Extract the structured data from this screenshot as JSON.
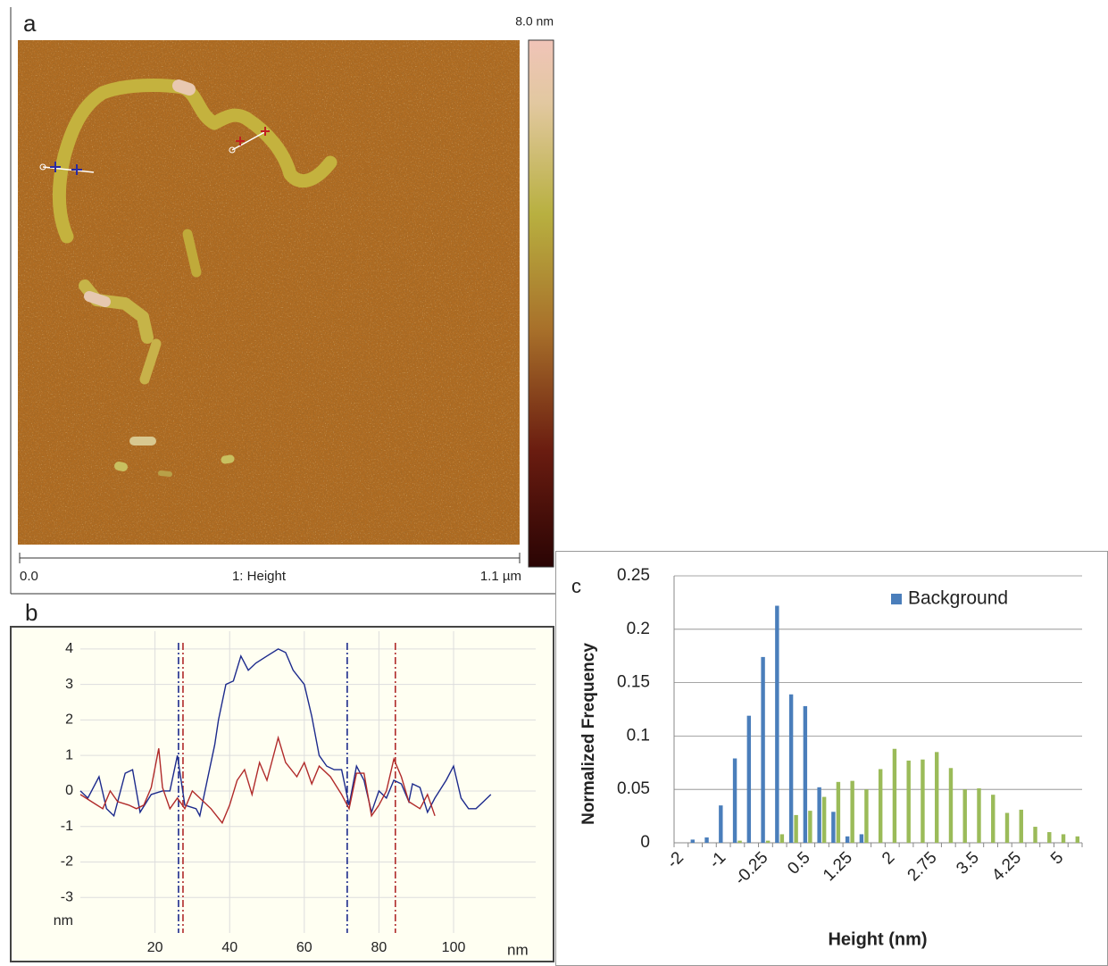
{
  "afm_image": {
    "label": "a",
    "colorbar_max": "8.0 nm",
    "x_start": "0.0",
    "channel": "1: Height",
    "x_end": "1.1 µm"
  },
  "chart_data": [
    {
      "type": "line",
      "label": "b",
      "x_label": "nm",
      "y_label": "nm",
      "xlim": [
        0,
        122
      ],
      "ylim": [
        -4,
        4.5
      ],
      "xticks": [
        20,
        40,
        60,
        80,
        100
      ],
      "yticks": [
        -3,
        -2,
        -1,
        0,
        1,
        2,
        3,
        4
      ],
      "grid": true,
      "series": [
        {
          "color": "#1c2a8c",
          "x": [
            0,
            2,
            5,
            7,
            9,
            12,
            14,
            16,
            19,
            22,
            24,
            26,
            28,
            31,
            32,
            34,
            36,
            37,
            39,
            41,
            43,
            45,
            47,
            50,
            53,
            55,
            57,
            60,
            62,
            64,
            66,
            68,
            70,
            72,
            74,
            76,
            78,
            80,
            82,
            84,
            86,
            88,
            89,
            91,
            93,
            95,
            98,
            100,
            102,
            104,
            106,
            108,
            110
          ],
          "values": [
            0.0,
            -0.2,
            0.4,
            -0.5,
            -0.7,
            0.5,
            0.6,
            -0.6,
            -0.1,
            0.0,
            0.0,
            1.0,
            -0.4,
            -0.5,
            -0.7,
            0.3,
            1.3,
            2.0,
            3.0,
            3.1,
            3.8,
            3.4,
            3.6,
            3.8,
            4.0,
            3.9,
            3.4,
            3.0,
            2.1,
            1.0,
            0.7,
            0.6,
            0.6,
            -0.4,
            0.7,
            0.3,
            -0.6,
            0.0,
            -0.2,
            0.3,
            0.2,
            -0.3,
            0.2,
            0.1,
            -0.6,
            -0.2,
            0.3,
            0.7,
            -0.2,
            -0.5,
            -0.5,
            -0.3,
            -0.1
          ]
        },
        {
          "color": "#b02a2a",
          "x": [
            0,
            3,
            6,
            8,
            10,
            13,
            15,
            17,
            19,
            21,
            22,
            24,
            26,
            28,
            30,
            33,
            35,
            38,
            40,
            42,
            44,
            46,
            48,
            50,
            53,
            55,
            58,
            60,
            62,
            64,
            67,
            70,
            72,
            74,
            76,
            78,
            80,
            82,
            84,
            86,
            88,
            91,
            93,
            95
          ],
          "values": [
            -0.1,
            -0.3,
            -0.5,
            0.0,
            -0.3,
            -0.4,
            -0.5,
            -0.4,
            0.1,
            1.2,
            0.1,
            -0.5,
            -0.2,
            -0.5,
            0.0,
            -0.3,
            -0.5,
            -0.9,
            -0.4,
            0.3,
            0.6,
            -0.1,
            0.8,
            0.3,
            1.5,
            0.8,
            0.4,
            0.8,
            0.2,
            0.7,
            0.4,
            -0.1,
            -0.5,
            0.5,
            0.5,
            -0.7,
            -0.4,
            0.0,
            0.9,
            0.4,
            -0.3,
            -0.5,
            -0.1,
            -0.7
          ]
        }
      ],
      "cursors": [
        {
          "x": 26.3,
          "color": "#1c2a8c"
        },
        {
          "x": 27.5,
          "color": "#b02a2a"
        },
        {
          "x": 71.5,
          "color": "#1c2a8c"
        },
        {
          "x": 84.4,
          "color": "#b02a2a"
        }
      ]
    },
    {
      "type": "bar",
      "label": "c",
      "x_label": "Height (nm)",
      "y_label": "Normalized Frequency",
      "ylim": [
        0,
        0.25
      ],
      "yticks": [
        0,
        0.05,
        0.1,
        0.15,
        0.2,
        0.25
      ],
      "grid": true,
      "legend": "top-right",
      "categories": [
        "-2",
        null,
        null,
        "-1",
        null,
        null,
        "-0.25",
        null,
        null,
        "0.5",
        null,
        null,
        "1.25",
        null,
        null,
        "2",
        null,
        null,
        "2.75",
        null,
        null,
        "3.5",
        null,
        null,
        "4.25",
        null,
        null,
        "5",
        null
      ],
      "series": [
        {
          "name": "Background",
          "color": "#4a7ebb",
          "values": [
            0,
            0.003,
            0.005,
            0.035,
            0.079,
            0.119,
            0.174,
            0.222,
            0.139,
            0.128,
            0.052,
            0.029,
            0.006,
            0.008,
            0,
            0,
            0,
            0,
            0,
            0,
            0,
            0,
            0,
            0,
            0,
            0,
            0,
            0,
            0
          ]
        },
        {
          "color": "#9bbb59",
          "values": [
            0,
            0,
            0,
            0,
            0.002,
            0,
            0.002,
            0.008,
            0.026,
            0.03,
            0.043,
            0.057,
            0.058,
            0.05,
            0.069,
            0.088,
            0.077,
            0.078,
            0.085,
            0.07,
            0.05,
            0.051,
            0.045,
            0.028,
            0.031,
            0.015,
            0.01,
            0.008,
            0.006
          ]
        }
      ]
    }
  ]
}
